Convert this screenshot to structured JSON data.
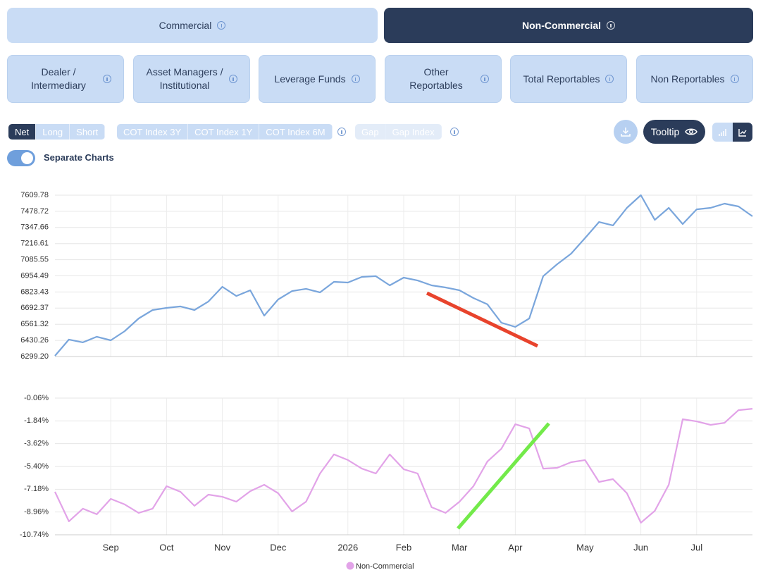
{
  "tabs": [
    {
      "label": "Commercial",
      "active": false
    },
    {
      "label": "Non-Commercial",
      "active": true
    }
  ],
  "subtabs": [
    "Dealer / Intermediary",
    "Asset Managers / Institutional",
    "Leverage Funds",
    "Other Reportables",
    "Total Reportables",
    "Non Reportables"
  ],
  "toggles": {
    "mode": [
      "Net",
      "Long",
      "Short"
    ],
    "index": [
      "COT Index 3Y",
      "COT Index 1Y",
      "COT Index 6M"
    ],
    "gap": [
      "Gap",
      "Gap Index"
    ],
    "tooltip": "Tooltip",
    "separate_charts": "Separate Charts"
  },
  "chart_data": [
    {
      "type": "line",
      "series": [
        {
          "color": "#7aa6dc",
          "values": [
            6305,
            6437,
            6414,
            6460,
            6431,
            6505,
            6608,
            6677,
            6694,
            6706,
            6677,
            6746,
            6866,
            6791,
            6837,
            6631,
            6763,
            6831,
            6849,
            6820,
            6906,
            6900,
            6946,
            6952,
            6877,
            6940,
            6917,
            6877,
            6860,
            6837,
            6774,
            6723,
            6574,
            6540,
            6608,
            6952,
            7049,
            7135,
            7261,
            7392,
            7364,
            7507,
            7610,
            7409,
            7507,
            7375,
            7495,
            7507,
            7541,
            7518,
            7438
          ]
        }
      ],
      "ylim": [
        6299.2,
        7609.78
      ],
      "yticks": [
        {
          "value": 6299.2,
          "label": "6299.20"
        },
        6430.26,
        6561.32,
        6692.37,
        6823.43,
        6954.49,
        7085.55,
        7216.61,
        7347.66,
        7478.72,
        7609.78
      ],
      "grid": true
    },
    {
      "type": "line",
      "categories": [
        null,
        null,
        null,
        null,
        "Sep",
        null,
        null,
        null,
        "Oct",
        null,
        null,
        null,
        "Nov",
        null,
        null,
        null,
        "Dec",
        null,
        null,
        null,
        null,
        "2026",
        null,
        null,
        null,
        "Feb",
        null,
        null,
        null,
        "Mar",
        null,
        null,
        null,
        "Apr",
        null,
        null,
        null,
        null,
        "May",
        null,
        null,
        null,
        "Jun",
        null,
        null,
        null,
        "Jul",
        null,
        null,
        null,
        null
      ],
      "series": [
        {
          "name": "Non-Commercial",
          "color": "#e2a3e8",
          "values": [
            -7.38,
            -9.69,
            -8.7,
            -9.14,
            -7.93,
            -8.37,
            -9.03,
            -8.7,
            -6.94,
            -7.38,
            -8.48,
            -7.6,
            -7.77,
            -8.15,
            -7.33,
            -6.83,
            -7.49,
            -8.92,
            -8.15,
            -5.95,
            -4.46,
            -4.9,
            -5.57,
            -5.95,
            -4.46,
            -5.62,
            -5.95,
            -8.59,
            -9.03,
            -8.15,
            -6.94,
            -5.01,
            -4.02,
            -2.1,
            -2.43,
            -5.57,
            -5.51,
            -5.07,
            -4.9,
            -6.61,
            -6.39,
            -7.49,
            -9.8,
            -8.87,
            -6.83,
            -1.71,
            -1.88,
            -2.15,
            -1.99,
            -1.0,
            -0.89
          ]
        }
      ],
      "ylim": [
        -10.74,
        -0.06
      ],
      "yticks": [
        {
          "value": -10.74,
          "label": "-10.74%"
        },
        {
          "value": -8.96,
          "label": "-8.96%"
        },
        {
          "value": -7.18,
          "label": "-7.18%"
        },
        {
          "value": -5.4,
          "label": "-5.40%"
        },
        {
          "value": -3.62,
          "label": "-3.62%"
        },
        {
          "value": -1.84,
          "label": "-1.84%"
        },
        {
          "value": -0.06,
          "label": "-0.06%"
        }
      ],
      "grid": true,
      "legend": "bottom"
    }
  ]
}
